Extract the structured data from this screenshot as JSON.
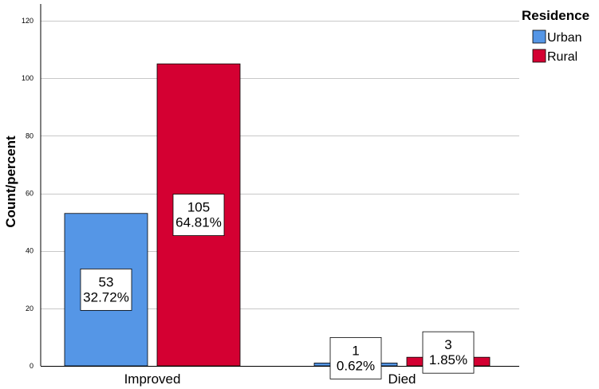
{
  "chart_data": {
    "type": "bar",
    "categories": [
      "Improved",
      "Died"
    ],
    "series": [
      {
        "name": "Urban",
        "color": "#5596e6",
        "values": [
          53,
          1
        ],
        "labels": [
          [
            "53",
            "32.72%"
          ],
          [
            "1",
            "0.62%"
          ]
        ]
      },
      {
        "name": "Rural",
        "color": "#d40032",
        "values": [
          105,
          3
        ],
        "labels": [
          [
            "105",
            "64.81%"
          ],
          [
            "3",
            "1.85%"
          ]
        ]
      }
    ],
    "title": "",
    "xlabel": "",
    "ylabel": "Count/percent",
    "ylim": [
      0,
      120
    ],
    "yticks": [
      0,
      20,
      40,
      60,
      80,
      100,
      120
    ],
    "grid": true,
    "legend": {
      "title": "Residence",
      "placement": "top-right"
    }
  }
}
